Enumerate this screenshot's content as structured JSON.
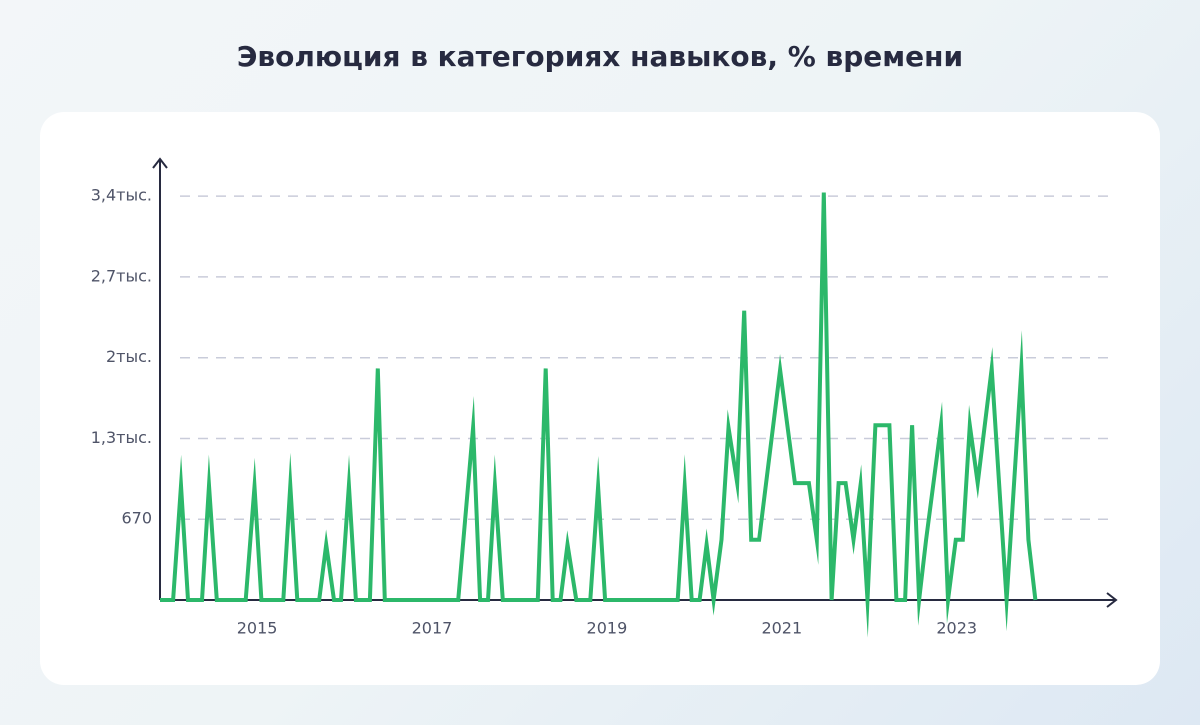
{
  "chart_data": {
    "type": "line",
    "title": "Эволюция в категориях навыков, % времени",
    "x": [
      2013.89,
      2014.04,
      2014.13,
      2014.21,
      2014.37,
      2014.45,
      2014.54,
      2014.87,
      2014.97,
      2015.05,
      2015.3,
      2015.38,
      2015.46,
      2015.71,
      2015.79,
      2015.88,
      2015.96,
      2016.05,
      2016.13,
      2016.29,
      2016.38,
      2016.46,
      2017.3,
      2017.47,
      2017.55,
      2017.64,
      2017.72,
      2017.81,
      2018.21,
      2018.3,
      2018.38,
      2018.47,
      2018.55,
      2018.65,
      2018.81,
      2018.9,
      2018.98,
      2019.81,
      2019.89,
      2019.97,
      2020.06,
      2020.14,
      2020.22,
      2020.31,
      2020.39,
      2020.49,
      2020.57,
      2020.65,
      2020.74,
      2020.98,
      2021.15,
      2021.31,
      2021.4,
      2021.48,
      2021.57,
      2021.65,
      2021.73,
      2021.82,
      2021.9,
      2021.98,
      2022.07,
      2022.23,
      2022.31,
      2022.41,
      2022.49,
      2022.57,
      2022.65,
      2022.82,
      2022.9,
      2022.99,
      2023.07,
      2023.15,
      2023.24,
      2023.4,
      2023.57,
      2023.74,
      2023.82,
      2023.9
    ],
    "values": [
      0,
      0,
      950,
      0,
      0,
      950,
      0,
      0,
      940,
      0,
      0,
      950,
      0,
      0,
      460,
      0,
      0,
      950,
      0,
      0,
      1920,
      0,
      0,
      1430,
      0,
      0,
      950,
      0,
      0,
      1920,
      0,
      0,
      460,
      0,
      0,
      940,
      0,
      0,
      940,
      0,
      0,
      460,
      0,
      500,
      1430,
      970,
      2400,
      500,
      500,
      1910,
      970,
      970,
      500,
      3380,
      0,
      970,
      970,
      500,
      950,
      0,
      1450,
      1450,
      0,
      0,
      1450,
      0,
      500,
      1450,
      0,
      500,
      500,
      1450,
      970,
      1920,
      0,
      1920,
      500,
      0
    ],
    "color": "#2cb86a",
    "xlim": [
      2013.89,
      2024.81
    ],
    "xticks": [
      2015,
      2017,
      2019,
      2021,
      2023
    ],
    "ylim": [
      0,
      3650
    ],
    "yticks": [
      670,
      {
        "value": 1340,
        "label": "1,3тыс."
      },
      {
        "value": 2010,
        "label": "2тыс."
      },
      {
        "value": 2680,
        "label": "2,7тыс."
      },
      {
        "value": 3350,
        "label": "3,4тыс."
      }
    ],
    "grid": true
  }
}
